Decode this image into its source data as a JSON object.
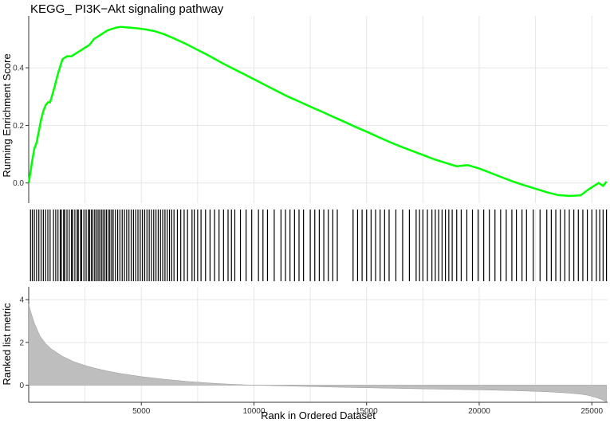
{
  "chart_data": [
    {
      "type": "line",
      "panel": "enrichment",
      "title": "KEGG_ PI3K−Akt signaling pathway",
      "ylabel": "Running Enrichment Score",
      "xlim": [
        0,
        25700
      ],
      "ylim": [
        -0.07,
        0.58
      ],
      "yticks": [
        0.0,
        0.2,
        0.4
      ],
      "ytick_labels": [
        "0.0",
        "0.2",
        "0.4"
      ],
      "series": [
        {
          "color": "#00ff00",
          "x": [
            0,
            80,
            160,
            250,
            350,
            450,
            550,
            650,
            750,
            850,
            950,
            1100,
            1300,
            1500,
            1700,
            1900,
            2100,
            2300,
            2500,
            2700,
            2900,
            3100,
            3300,
            3500,
            3700,
            3900,
            4100,
            4400,
            4800,
            5200,
            5600,
            6000,
            6500,
            7000,
            7500,
            8000,
            8500,
            9000,
            9500,
            10000,
            10500,
            11000,
            11500,
            12000,
            12500,
            13000,
            13500,
            14000,
            14500,
            15000,
            15500,
            16000,
            16500,
            17000,
            17500,
            18000,
            18500,
            19000,
            19500,
            20000,
            20500,
            21000,
            21500,
            22000,
            22500,
            23000,
            23500,
            24000,
            24500,
            24900,
            25100,
            25300,
            25500,
            25650
          ],
          "y": [
            0.0,
            0.04,
            0.08,
            0.12,
            0.14,
            0.18,
            0.22,
            0.25,
            0.27,
            0.28,
            0.28,
            0.32,
            0.38,
            0.43,
            0.44,
            0.44,
            0.45,
            0.46,
            0.47,
            0.48,
            0.5,
            0.51,
            0.52,
            0.53,
            0.535,
            0.54,
            0.542,
            0.54,
            0.537,
            0.533,
            0.527,
            0.517,
            0.5,
            0.482,
            0.462,
            0.442,
            0.42,
            0.4,
            0.38,
            0.36,
            0.34,
            0.32,
            0.3,
            0.283,
            0.265,
            0.248,
            0.23,
            0.213,
            0.195,
            0.178,
            0.16,
            0.143,
            0.127,
            0.112,
            0.097,
            0.082,
            0.07,
            0.058,
            0.062,
            0.05,
            0.035,
            0.02,
            0.005,
            -0.008,
            -0.02,
            -0.032,
            -0.042,
            -0.045,
            -0.043,
            -0.02,
            -0.01,
            0.0,
            -0.01,
            0.005
          ]
        }
      ]
    },
    {
      "type": "barcode",
      "panel": "gene-hits",
      "x": [
        80,
        160,
        250,
        350,
        450,
        550,
        650,
        750,
        850,
        950,
        1100,
        1200,
        1300,
        1400,
        1450,
        1550,
        1600,
        1700,
        1800,
        1900,
        1950,
        2050,
        2150,
        2200,
        2300,
        2350,
        2450,
        2550,
        2650,
        2700,
        2780,
        2850,
        2930,
        3000,
        3080,
        3150,
        3230,
        3300,
        3380,
        3450,
        3530,
        3600,
        3680,
        3750,
        3850,
        3950,
        4050,
        4150,
        4250,
        4350,
        4450,
        4550,
        4650,
        4750,
        4850,
        4950,
        5050,
        5150,
        5250,
        5350,
        5450,
        5550,
        5650,
        5750,
        5850,
        5950,
        6050,
        6150,
        6250,
        6350,
        6450,
        6600,
        6750,
        6900,
        7050,
        7250,
        7350,
        7500,
        7650,
        7850,
        8050,
        8250,
        8450,
        8650,
        8850,
        9000,
        9150,
        9400,
        9650,
        9900,
        10200,
        10400,
        10600,
        10900,
        11200,
        11400,
        11600,
        11800,
        12000,
        12200,
        12500,
        12700,
        12900,
        13100,
        13300,
        13500,
        13700,
        14400,
        14600,
        14800,
        15000,
        15200,
        15400,
        15600,
        15800,
        16000,
        16300,
        16600,
        16900,
        17200,
        17350,
        17500,
        17700,
        17900,
        18050,
        18200,
        18350,
        18500,
        18650,
        18800,
        19000,
        19200,
        19450,
        19700,
        19950,
        20200,
        20450,
        20700,
        20950,
        21200,
        21450,
        21650,
        21900,
        22100,
        22400,
        22700,
        23000,
        23200,
        23400,
        23600,
        23800,
        24000,
        24200,
        24400,
        24600,
        24800,
        25000,
        25200,
        25350,
        25500,
        25650
      ]
    },
    {
      "type": "area",
      "panel": "ranked-metric",
      "ylabel": "Ranked list metric",
      "xlabel": "Rank in Ordered Dataset",
      "xlim": [
        0,
        25700
      ],
      "ylim": [
        -0.8,
        4.6
      ],
      "yticks": [
        0,
        2,
        4
      ],
      "ytick_labels": [
        "0",
        "2",
        "4"
      ],
      "xticks": [
        5000,
        10000,
        15000,
        20000,
        25000
      ],
      "xtick_labels": [
        "5000",
        "10000",
        "15000",
        "20000",
        "25000"
      ],
      "fill": "#bebebe",
      "x": [
        0,
        100,
        250,
        500,
        750,
        1000,
        1500,
        2000,
        2500,
        3000,
        3500,
        4000,
        5000,
        6000,
        7000,
        8000,
        9000,
        10000,
        12000,
        14000,
        16000,
        18000,
        20000,
        21000,
        22000,
        22500,
        23000,
        23500,
        24000,
        24500,
        24800,
        25000,
        25200,
        25400,
        25550,
        25650
      ],
      "y": [
        3.8,
        3.4,
        2.9,
        2.3,
        1.95,
        1.7,
        1.35,
        1.1,
        0.92,
        0.78,
        0.66,
        0.56,
        0.4,
        0.28,
        0.18,
        0.1,
        0.04,
        0.0,
        -0.05,
        -0.1,
        -0.14,
        -0.18,
        -0.22,
        -0.24,
        -0.27,
        -0.29,
        -0.31,
        -0.34,
        -0.37,
        -0.42,
        -0.47,
        -0.52,
        -0.58,
        -0.65,
        -0.72,
        -0.78
      ]
    }
  ]
}
